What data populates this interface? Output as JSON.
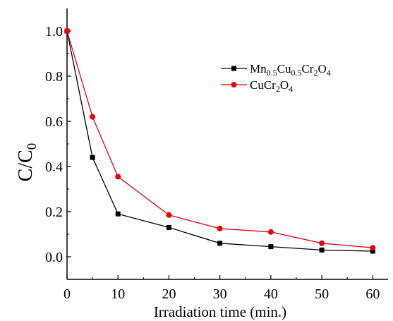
{
  "chart_data": {
    "type": "line",
    "xlabel": "Irradiation time (min.)",
    "ylabel": {
      "main": "C/C",
      "sub": "0"
    },
    "xlim": [
      0,
      63
    ],
    "ylim": [
      -0.1,
      1.1
    ],
    "xticks": [
      0,
      10,
      20,
      30,
      40,
      50,
      60
    ],
    "yticks": [
      0.0,
      0.2,
      0.4,
      0.6,
      0.8,
      1.0
    ],
    "xtick_labels": [
      "0",
      "10",
      "20",
      "30",
      "40",
      "50",
      "60"
    ],
    "ytick_labels": [
      "0.0",
      "0.2",
      "0.4",
      "0.6",
      "0.8",
      "1.0"
    ],
    "grid": false,
    "legend_position": "top-right",
    "x": [
      0,
      5,
      10,
      20,
      30,
      40,
      50,
      60
    ],
    "series": [
      {
        "name": "Mn0.5Cu0.5Cr2O4",
        "name_parts": [
          {
            "t": "Mn",
            "sub": false
          },
          {
            "t": "0.5",
            "sub": true
          },
          {
            "t": "Cu",
            "sub": false
          },
          {
            "t": "0.5",
            "sub": true
          },
          {
            "t": "Cr",
            "sub": false
          },
          {
            "t": "2",
            "sub": true
          },
          {
            "t": "O",
            "sub": false
          },
          {
            "t": "4",
            "sub": true
          }
        ],
        "values": [
          1.0,
          0.44,
          0.19,
          0.13,
          0.06,
          0.045,
          0.03,
          0.025
        ],
        "color": "#000000",
        "marker": "square"
      },
      {
        "name": "CuCr2O4",
        "name_parts": [
          {
            "t": "CuCr",
            "sub": false
          },
          {
            "t": "2",
            "sub": true
          },
          {
            "t": "O",
            "sub": false
          },
          {
            "t": "4",
            "sub": true
          }
        ],
        "values": [
          1.0,
          0.62,
          0.355,
          0.185,
          0.125,
          0.11,
          0.06,
          0.04
        ],
        "color": "#e8000b",
        "marker": "circle"
      }
    ]
  }
}
